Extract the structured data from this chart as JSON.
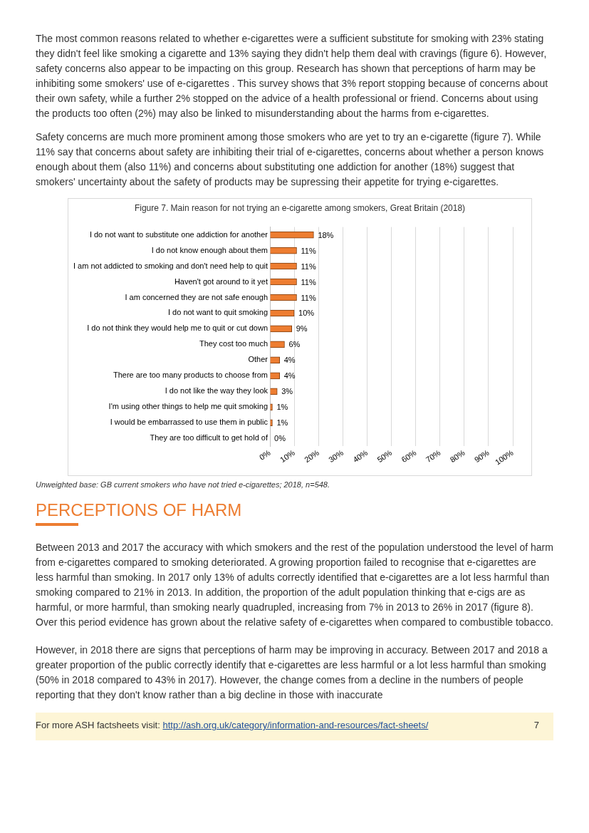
{
  "chart_data": {
    "type": "bar",
    "orientation": "horizontal",
    "title": "Figure 7. Main reason for not trying  an e-cigarette among smokers, Great Britain (2018)",
    "categories": [
      "I do not want to substitute one addiction for another",
      "I do not know enough about them",
      "I am not addicted to smoking and don't need help to quit",
      "Haven't got around to it yet",
      "I am concerned they are not safe enough",
      "I do not want to quit smoking",
      "I do not think they would help me to quit or cut down",
      "They cost too much",
      "Other",
      "There are too many products to choose from",
      "I do not like the way they look",
      "I'm using other things to help me quit smoking",
      "I would be embarrassed to use them in public",
      "They are too difficult to get hold of"
    ],
    "values": [
      18,
      11,
      11,
      11,
      11,
      10,
      9,
      6,
      4,
      4,
      3,
      1,
      1,
      0
    ],
    "value_labels": [
      "18%",
      "11%",
      "11%",
      "11%",
      "11%",
      "10%",
      "9%",
      "6%",
      "4%",
      "4%",
      "3%",
      "1%",
      "1%",
      "0%"
    ],
    "color": "#ed7d31",
    "xlim": [
      0,
      100
    ],
    "xticks": [
      {
        "value": 0,
        "label": "0%"
      },
      {
        "value": 10,
        "label": "10%"
      },
      {
        "value": 20,
        "label": "20%"
      },
      {
        "value": 30,
        "label": "30%"
      },
      {
        "value": 40,
        "label": "40%"
      },
      {
        "value": 50,
        "label": "50%"
      },
      {
        "value": 60,
        "label": "60%"
      },
      {
        "value": 70,
        "label": "70%"
      },
      {
        "value": 80,
        "label": "80%"
      },
      {
        "value": 90,
        "label": "90%"
      },
      {
        "value": 100,
        "label": "100%"
      }
    ],
    "grid": "x",
    "legend": false,
    "annotations": [
      "The most common reasons related to whether e-cigarettes were a sufficient substitute for smoking with 23% stating they didn't feel like smoking a cigarette and 13% saying they didn't help them deal with cravings (figure 6). However, safety concerns also appear to be impacting on this group. Research has shown that perceptions of harm may be inhibiting some smokers' use of e-cigarettes . This survey shows that 3% report stopping because of concerns about their own safety, while a further 2% stopped on the advice of a health professional or friend. Concerns about using the products too often (2%) may also be linked to misunderstanding about the harms from e-cigarettes.",
      "Safety concerns are much more prominent among those smokers who are yet to try an e-cigarette (figure 7). While 11% say that concerns about safety are inhibiting their trial of e-cigarettes, concerns about whether a person knows enough about them (also 11%) and concerns about substituting one addiction for another (18%) suggest that smokers' uncertainty about the safety of products may be supressing their appetite for trying e-cigarettes.",
      "Unweighted base: GB current smokers who have not tried e-cigarettes; 2018, n=548.",
      "PERCEPTIONS OF HARM",
      "Between 2013 and 2017 the accuracy with which smokers and the rest of the population understood the level of harm from e-cigarettes compared to smoking deteriorated. A growing proportion failed to recognise that e-cigarettes are less harmful than smoking. In 2017 only 13% of adults correctly identified that e-cigarettes are a lot less harmful than smoking compared to 21% in 2013. In addition, the proportion of the adult population thinking that e-cigs are as harmful, or more harmful, than smoking nearly quadrupled, increasing from 7% in 2013 to 26% in 2017 (figure 8). Over this period evidence has grown about the relative safety of e-cigarettes when compared to combustible tobacco.",
      "However, in 2018 there are signs that perceptions of harm may be improving in accuracy. Between 2017 and 2018 a greater proportion of the public correctly identify that e-cigarettes are less harmful or a lot less harmful than smoking (50% in 2018 compared to 43% in 2017). However, the change comes from a decline in the numbers of people reporting that they don't know rather than a big decline in those with inaccurate",
      "For more ASH factsheets visit:",
      "http://ash.org.uk/category/information-and-resources/fact-sheets/",
      "7"
    ]
  }
}
